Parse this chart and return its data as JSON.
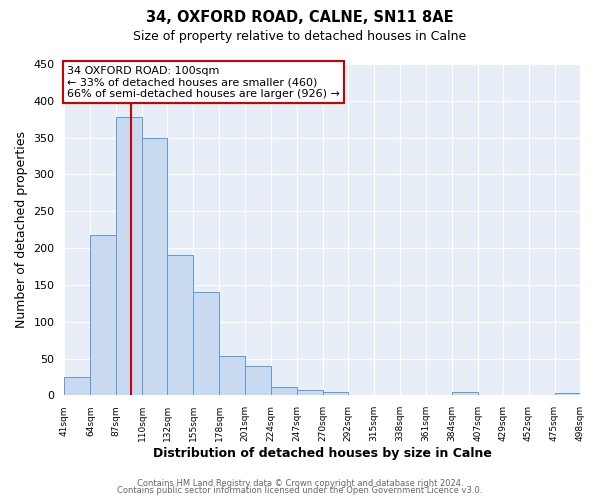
{
  "title": "34, OXFORD ROAD, CALNE, SN11 8AE",
  "subtitle": "Size of property relative to detached houses in Calne",
  "xlabel": "Distribution of detached houses by size in Calne",
  "ylabel": "Number of detached properties",
  "bar_edges": [
    41,
    64,
    87,
    110,
    132,
    155,
    178,
    201,
    224,
    247,
    270,
    292,
    315,
    338,
    361,
    384,
    407,
    429,
    452,
    475,
    498
  ],
  "bar_heights": [
    25,
    218,
    378,
    350,
    190,
    141,
    54,
    40,
    12,
    7,
    4,
    0,
    1,
    0,
    0,
    4,
    0,
    0,
    0,
    3
  ],
  "bar_color": "#c9daf0",
  "bar_edge_color": "#5b9bd5",
  "tick_labels": [
    "41sqm",
    "64sqm",
    "87sqm",
    "110sqm",
    "132sqm",
    "155sqm",
    "178sqm",
    "201sqm",
    "224sqm",
    "247sqm",
    "270sqm",
    "292sqm",
    "315sqm",
    "338sqm",
    "361sqm",
    "384sqm",
    "407sqm",
    "429sqm",
    "452sqm",
    "475sqm",
    "498sqm"
  ],
  "ylim": [
    0,
    450
  ],
  "yticks": [
    0,
    50,
    100,
    150,
    200,
    250,
    300,
    350,
    400,
    450
  ],
  "vline_x": 100,
  "vline_color": "#cc0000",
  "annotation_title": "34 OXFORD ROAD: 100sqm",
  "annotation_line1": "← 33% of detached houses are smaller (460)",
  "annotation_line2": "66% of semi-detached houses are larger (926) →",
  "annotation_box_facecolor": "#ffffff",
  "annotation_box_edgecolor": "#cc0000",
  "footer1": "Contains HM Land Registry data © Crown copyright and database right 2024.",
  "footer2": "Contains public sector information licensed under the Open Government Licence v3.0.",
  "fig_background": "#ffffff",
  "plot_background": "#e8eef8",
  "grid_color": "#ffffff",
  "figsize": [
    6.0,
    5.0
  ],
  "dpi": 100
}
